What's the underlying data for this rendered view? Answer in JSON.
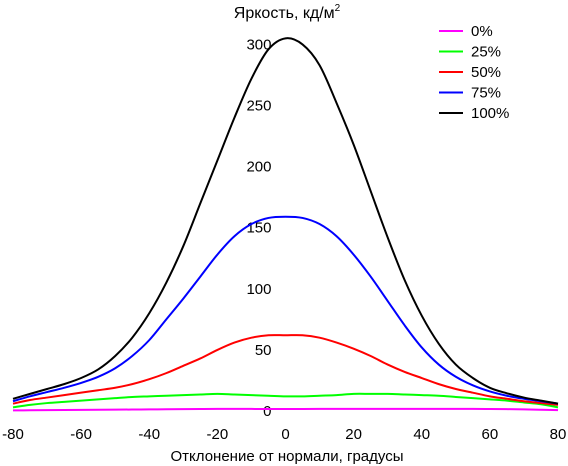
{
  "chart_data": {
    "type": "line",
    "title": "Яркость, кд/м",
    "title_superscript": "2",
    "xlabel": "Отклонение от нормали, градусы",
    "ylabel": "",
    "xlim": [
      -80,
      80
    ],
    "ylim": [
      0,
      320
    ],
    "xticks": [
      -80,
      -60,
      -40,
      -20,
      0,
      20,
      40,
      60,
      80
    ],
    "yticks": [
      0,
      50,
      100,
      150,
      200,
      250,
      300
    ],
    "grid": false,
    "legend_position": "top-right",
    "x": [
      -80,
      -75,
      -70,
      -65,
      -60,
      -55,
      -50,
      -45,
      -40,
      -35,
      -30,
      -25,
      -20,
      -15,
      -10,
      -5,
      0,
      5,
      10,
      15,
      20,
      25,
      30,
      35,
      40,
      45,
      50,
      55,
      60,
      65,
      70,
      75,
      80
    ],
    "series": [
      {
        "name": "0%",
        "color": "#ff00ff",
        "values": [
          0.5,
          0.6,
          0.7,
          0.8,
          0.9,
          1.0,
          1.1,
          1.2,
          1.3,
          1.4,
          1.5,
          1.6,
          1.7,
          1.7,
          1.7,
          1.6,
          1.6,
          1.6,
          1.7,
          1.7,
          1.7,
          1.7,
          1.7,
          1.7,
          1.7,
          1.7,
          1.7,
          1.7,
          1.6,
          1.5,
          1.3,
          1.0,
          0.7
        ]
      },
      {
        "name": "25%",
        "color": "#00ff00",
        "values": [
          3,
          5,
          6.5,
          7.5,
          8.5,
          9.5,
          10.5,
          11.5,
          12,
          12.5,
          13,
          13.5,
          14,
          13.5,
          13,
          12.5,
          12,
          12,
          12.5,
          13,
          14,
          14,
          14,
          13.5,
          13,
          12.5,
          11.5,
          10.5,
          9.5,
          8.5,
          7,
          5.5,
          3
        ]
      },
      {
        "name": "50%",
        "color": "#ff0000",
        "values": [
          6,
          9,
          11,
          13,
          15,
          17,
          19,
          22,
          26,
          31,
          37,
          43,
          50,
          56,
          60,
          62,
          62,
          62,
          60,
          56,
          51,
          45,
          38,
          32,
          27,
          22,
          18,
          15,
          12,
          10,
          8,
          6.5,
          5
        ]
      },
      {
        "name": "75%",
        "color": "#0000ff",
        "values": [
          8,
          12,
          15.5,
          19,
          23,
          28,
          35,
          45,
          58,
          75,
          92,
          110,
          128,
          143,
          153,
          158,
          159,
          158,
          153,
          143,
          128,
          110,
          90,
          70,
          52,
          38,
          28,
          21,
          16,
          12.5,
          10,
          8,
          6
        ]
      },
      {
        "name": "100%",
        "color": "#000000",
        "values": [
          10,
          14,
          18,
          22,
          27,
          34,
          45,
          60,
          80,
          105,
          135,
          170,
          205,
          240,
          272,
          296,
          305,
          300,
          283,
          252,
          218,
          180,
          142,
          107,
          78,
          55,
          38,
          27,
          19,
          14.5,
          11,
          8.5,
          6
        ]
      }
    ]
  }
}
